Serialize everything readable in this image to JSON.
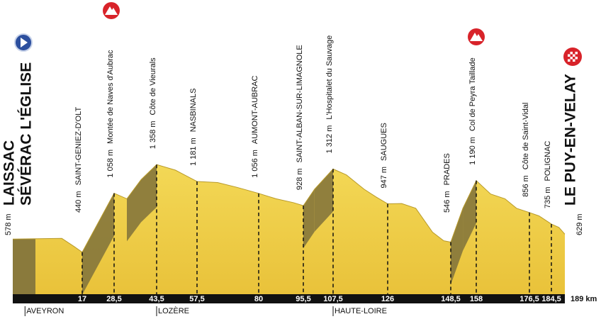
{
  "chart_data": {
    "type": "profile",
    "start_name": [
      "LAISSAC",
      "SÉVÉRAC L'ÉGLISE"
    ],
    "x": [
      0,
      17,
      28.5,
      43.5,
      57.5,
      80,
      95.5,
      107.5,
      126,
      148.5,
      158,
      176.5,
      184.5,
      189
    ],
    "values": [
      578,
      440,
      1058,
      1358,
      1181,
      1056,
      928,
      1312,
      947,
      546,
      1190,
      856,
      735,
      629
    ],
    "value_labels": [
      "578 m",
      "440 m",
      "1 058 m",
      "1 358 m",
      "1 181 m",
      "1 056 m",
      "928 m",
      "1 312 m",
      "947 m",
      "546 m",
      "1 190 m",
      "856 m",
      "735 m",
      "629 m"
    ],
    "names": [
      null,
      "SAINT-GENIEZ-D'OLT",
      "Montée de Naves d'Aubrac",
      "Côte de Vieurals",
      "NASBINALS",
      "AUMONT-AUBRAC",
      "SAINT-ALBAN-SUR-LIMAGNOLE",
      "L'Hospitalet du Sauvage",
      "SAUGUES",
      "PRADES",
      "Col de Peyra Taillade",
      "Côte de Saint-Vidal",
      "POLIGNAC",
      "LE PUY-EN-VELAY"
    ],
    "profile": {
      "x": [
        0,
        12,
        15,
        17,
        28.5,
        33,
        38,
        43.5,
        50,
        57.5,
        65,
        72,
        80,
        86,
        92,
        95.5,
        100,
        107.5,
        112,
        118,
        122,
        126,
        131,
        136,
        142,
        146,
        148.5,
        153,
        158,
        163,
        168,
        172,
        176.5,
        180,
        184.5,
        187,
        189
      ],
      "values": [
        578,
        585,
        500,
        440,
        1058,
        1000,
        1200,
        1358,
        1300,
        1181,
        1170,
        1120,
        1056,
        1000,
        960,
        928,
        1100,
        1312,
        1250,
        1100,
        1020,
        947,
        950,
        900,
        650,
        560,
        546,
        900,
        1190,
        1050,
        1000,
        900,
        856,
        820,
        735,
        700,
        629
      ]
    },
    "xticks": [
      17,
      {
        "value": 28.5,
        "label": "28,5"
      },
      {
        "value": 43.5,
        "label": "43,5"
      },
      {
        "value": 57.5,
        "label": "57,5"
      },
      80,
      {
        "value": 95.5,
        "label": "95,5"
      },
      {
        "value": 107.5,
        "label": "107,5"
      },
      126,
      {
        "value": 148.5,
        "label": "148,5"
      },
      158,
      {
        "value": 176.5,
        "label": "176,5"
      },
      {
        "value": 184.5,
        "label": "184,5"
      },
      {
        "value": 189,
        "label": "189 km"
      }
    ],
    "xlim": [
      0,
      189
    ],
    "ylim": [
      0,
      2860
    ],
    "regions": [
      {
        "name": "AVEYRON",
        "at": 3
      },
      {
        "name": "LOZÈRE",
        "at": 43.5
      },
      {
        "name": "HAUTE-LOIRE",
        "at": 107.5
      }
    ],
    "color": "#f0cf45",
    "climb_color": "#8a7a3c"
  }
}
